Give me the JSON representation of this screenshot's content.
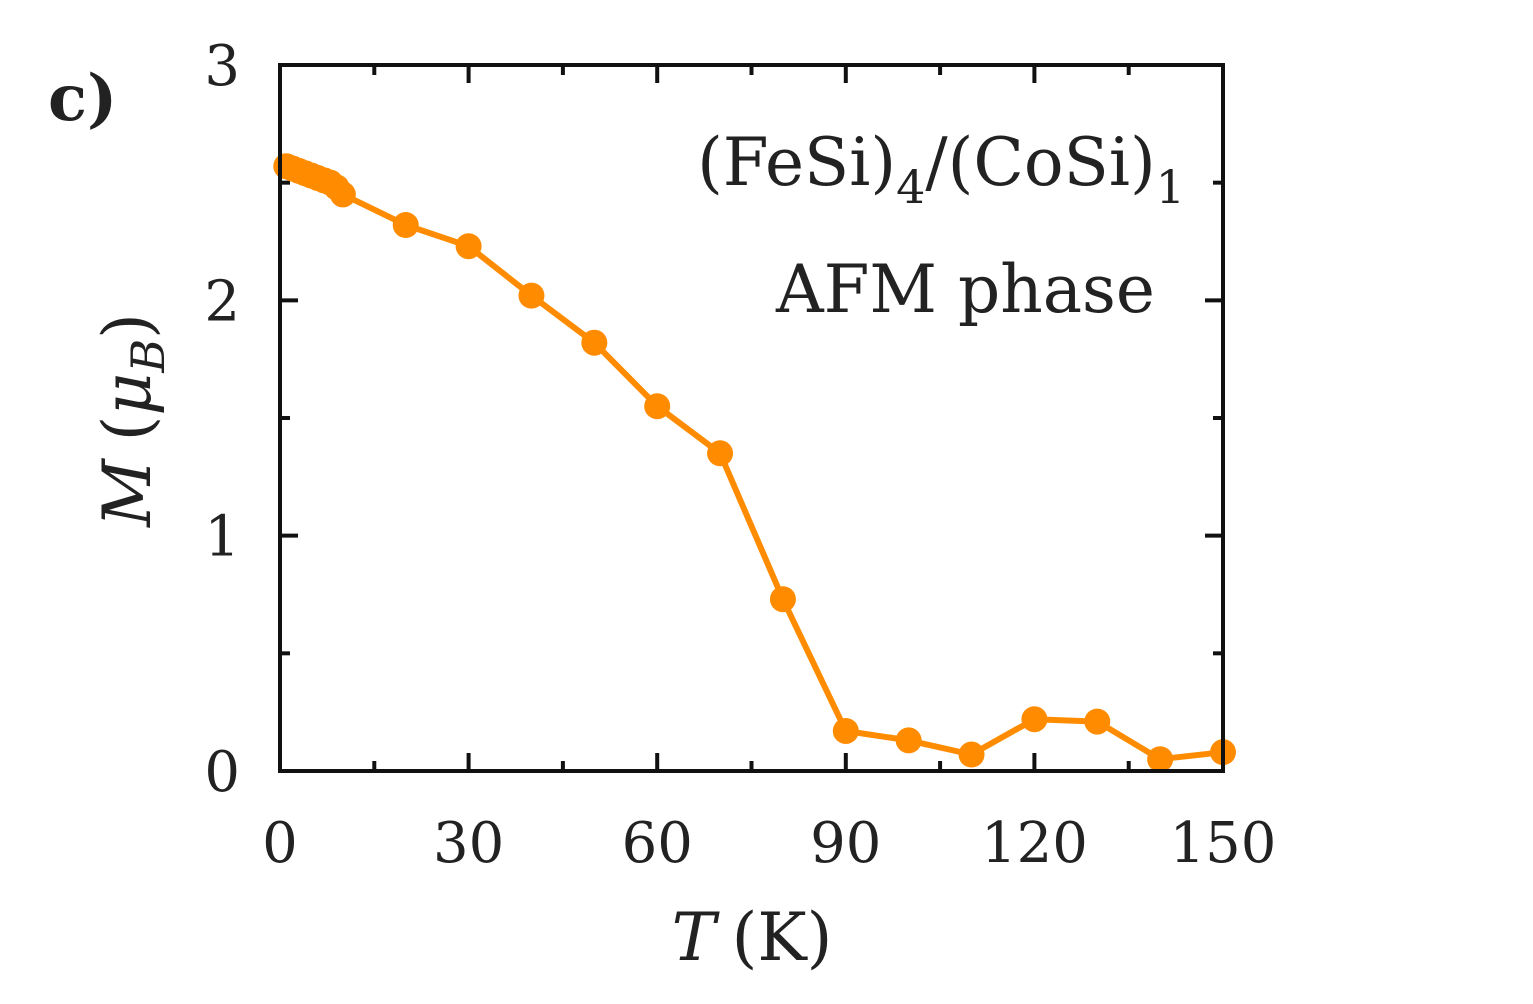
{
  "chart_data": {
    "type": "line",
    "panel_label": "c)",
    "annotations": {
      "material_base1": "(FeSi)",
      "material_sub1": "4",
      "material_sep": "/(CoSi)",
      "material_sub2": "1",
      "phase": "AFM phase"
    },
    "xlabel": {
      "symbol": "T",
      "unit": "(K)"
    },
    "ylabel": {
      "symbol": "M",
      "unit_open": "(",
      "unit_mu": "μ",
      "unit_sub": "B",
      "unit_close": ")"
    },
    "xlim": [
      0,
      150
    ],
    "ylim": [
      0,
      3
    ],
    "xticks": [
      0,
      30,
      60,
      90,
      120,
      150
    ],
    "xtick_labels": [
      "0",
      "30",
      "60",
      "90",
      "120",
      "150"
    ],
    "xminor": [
      15,
      45,
      75,
      105,
      135
    ],
    "yticks": [
      0,
      1,
      2,
      3
    ],
    "ytick_labels": [
      "0",
      "1",
      "2",
      "3"
    ],
    "yminor": [
      0.5,
      1.5,
      2.5
    ],
    "series": [
      {
        "name": "(FeSi)4/(CoSi)1 AFM",
        "color": "#FF8C00",
        "x": [
          1,
          2,
          3,
          4,
          5,
          6,
          7,
          8,
          9,
          10,
          20,
          30,
          40,
          50,
          60,
          70,
          80,
          90,
          100,
          110,
          120,
          130,
          140,
          150
        ],
        "y": [
          2.57,
          2.56,
          2.55,
          2.54,
          2.53,
          2.52,
          2.51,
          2.5,
          2.48,
          2.45,
          2.32,
          2.23,
          2.02,
          1.82,
          1.55,
          1.35,
          0.73,
          0.17,
          0.13,
          0.07,
          0.22,
          0.21,
          0.05,
          0.08
        ]
      }
    ]
  }
}
